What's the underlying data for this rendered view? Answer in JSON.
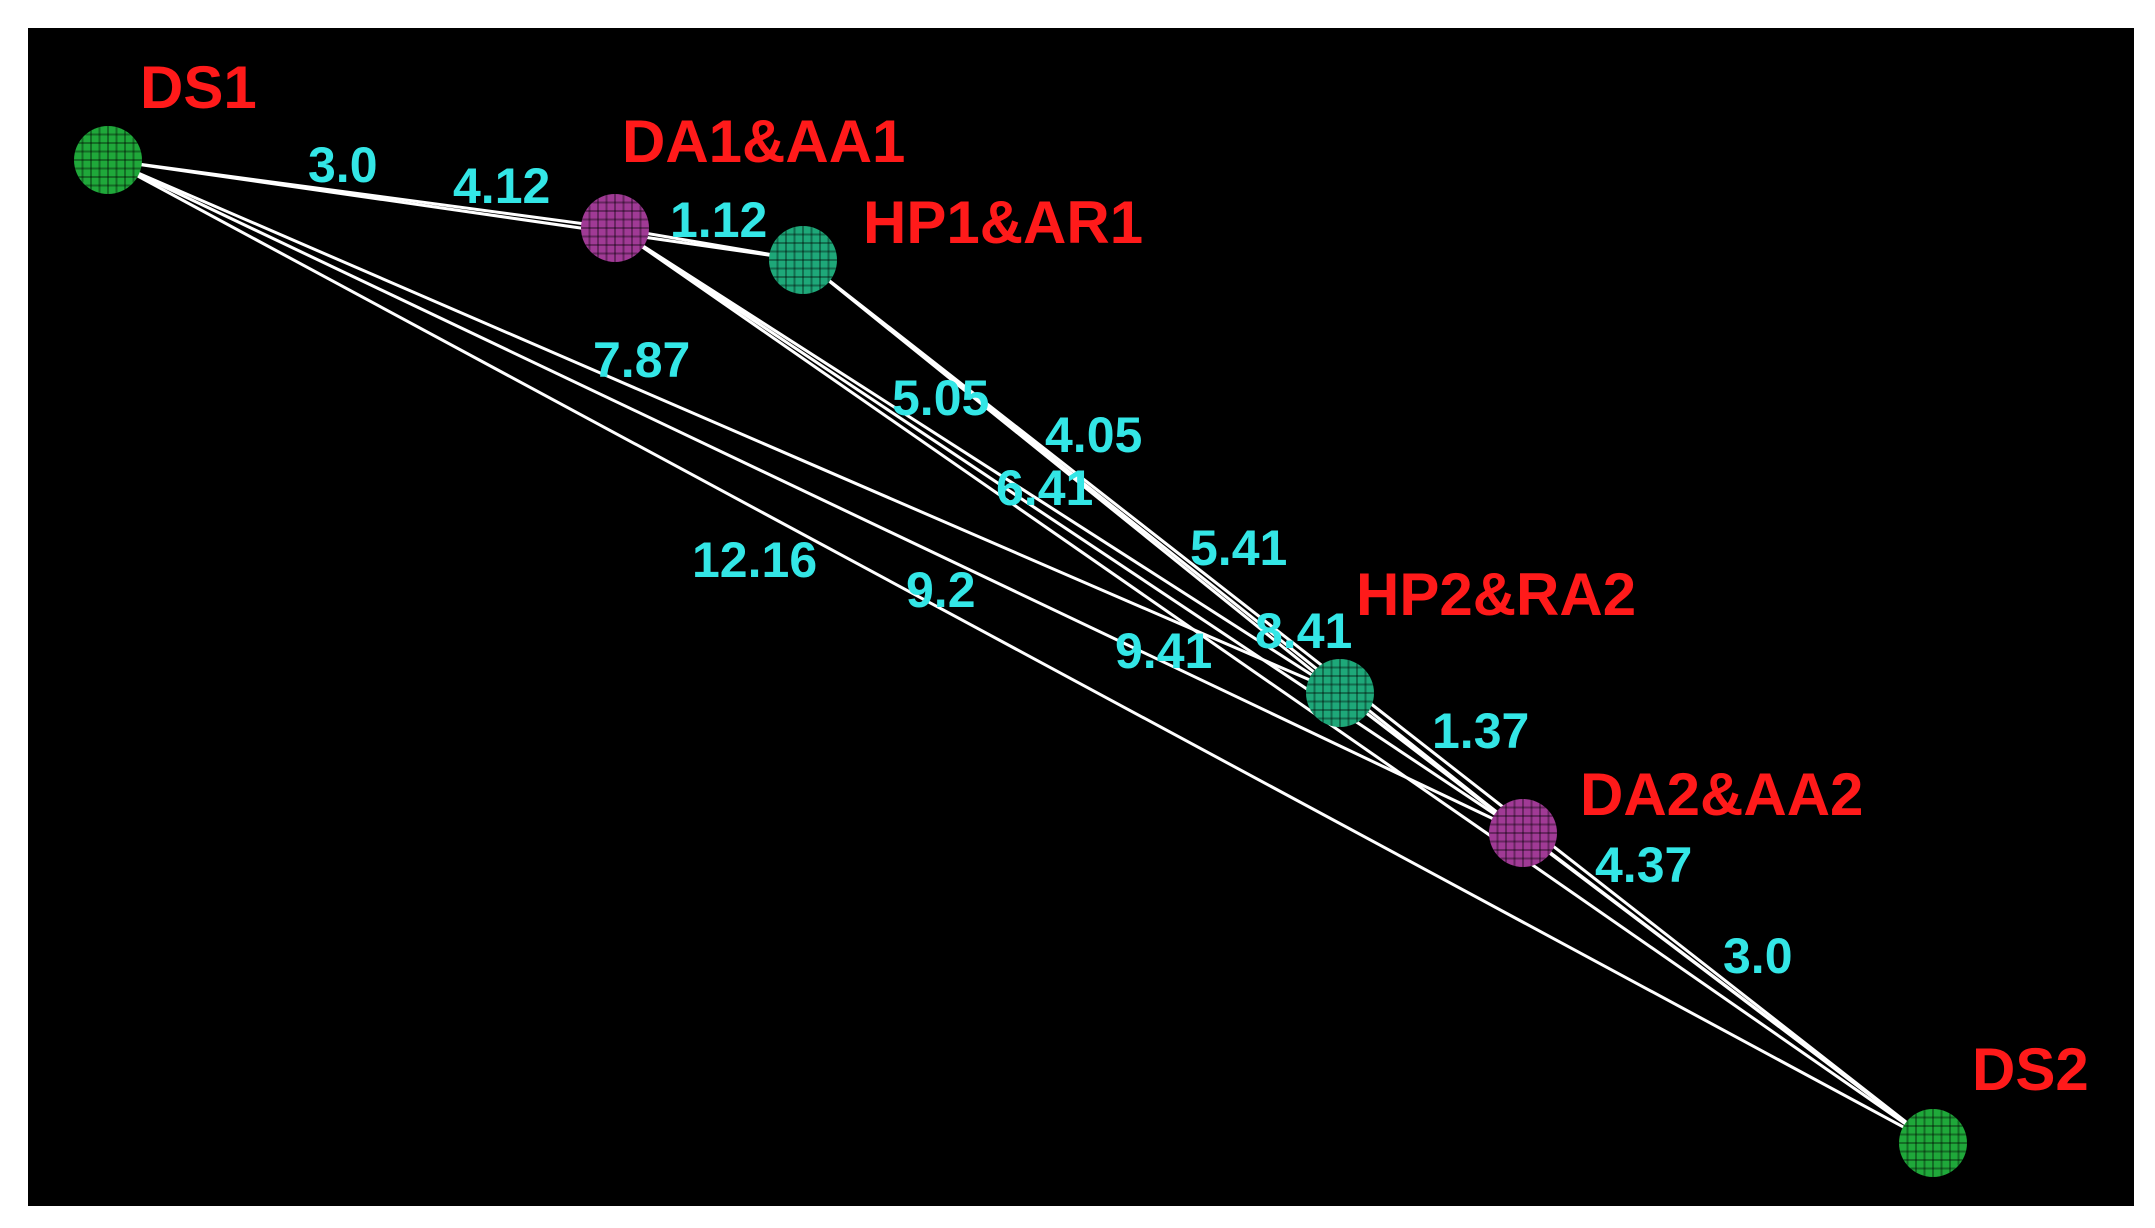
{
  "colors": {
    "background": "#000000",
    "frame": "#ffffff",
    "edge": "#ffffff",
    "node_label": "#ff1a1a",
    "distance_label": "#33e6e6",
    "node_green": "#1fa83a",
    "node_teal": "#1ea879",
    "node_magenta": "#a03a95"
  },
  "nodes": [
    {
      "id": "ds1",
      "label": "DS1",
      "color_key": "node_green"
    },
    {
      "id": "da1aa1",
      "label": "DA1&AA1",
      "color_key": "node_magenta"
    },
    {
      "id": "hp1ar1",
      "label": "HP1&AR1",
      "color_key": "node_teal"
    },
    {
      "id": "hp2ra2",
      "label": "HP2&RA2",
      "color_key": "node_teal"
    },
    {
      "id": "da2aa2",
      "label": "DA2&AA2",
      "color_key": "node_magenta"
    },
    {
      "id": "ds2",
      "label": "DS2",
      "color_key": "node_green"
    }
  ],
  "edges": [
    {
      "from": "ds1",
      "to": "da1aa1"
    },
    {
      "from": "ds1",
      "to": "hp1ar1"
    },
    {
      "from": "da1aa1",
      "to": "hp1ar1"
    },
    {
      "from": "ds1",
      "to": "hp2ra2"
    },
    {
      "from": "ds1",
      "to": "da2aa2"
    },
    {
      "from": "ds1",
      "to": "ds2"
    },
    {
      "from": "da1aa1",
      "to": "hp2ra2"
    },
    {
      "from": "da1aa1",
      "to": "da2aa2"
    },
    {
      "from": "da1aa1",
      "to": "ds2"
    },
    {
      "from": "hp1ar1",
      "to": "hp2ra2"
    },
    {
      "from": "hp1ar1",
      "to": "da2aa2"
    },
    {
      "from": "hp1ar1",
      "to": "ds2"
    },
    {
      "from": "hp2ra2",
      "to": "da2aa2"
    },
    {
      "from": "hp2ra2",
      "to": "ds2"
    },
    {
      "from": "da2aa2",
      "to": "ds2"
    }
  ],
  "distance_labels": [
    "3.0",
    "4.12",
    "1.12",
    "7.87",
    "5.05",
    "4.05",
    "6.41",
    "5.41",
    "12.16",
    "9.2",
    "9.41",
    "8.41",
    "1.37",
    "4.37",
    "3.0"
  ]
}
